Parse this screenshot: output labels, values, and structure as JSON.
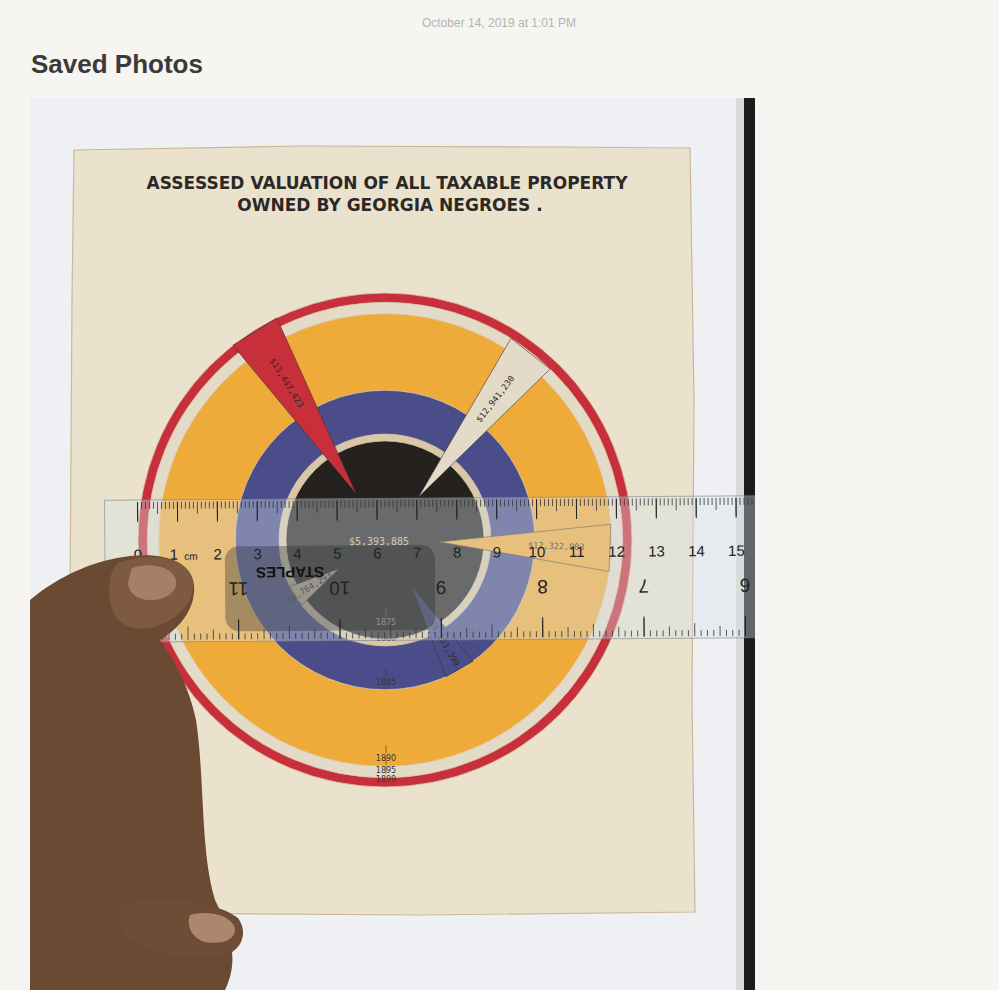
{
  "page": {
    "date": "October 14, 2019 at 1:01 PM",
    "heading": "Saved Photos"
  },
  "chart_data": {
    "type": "concentric",
    "title": "ASSESSED VALUATION OF ALL TAXABLE PROPERTY",
    "subtitle": "OWNED BY GEORGIA NEGROES .",
    "categories": [
      "1875",
      "1880",
      "1885",
      "1890",
      "1895",
      "1899"
    ],
    "values": [
      5393885,
      5764293,
      8153390,
      12322003,
      12941230,
      13447423
    ],
    "value_labels": [
      "$5,393,885",
      "$5,764,293",
      "$8,153,390",
      "$12,322,003",
      "$12,941,230",
      "$13,447,423"
    ],
    "colors": [
      "#25211f",
      "#d9c7a5",
      "#4b4d8a",
      "#efab3a",
      "#e4dac8",
      "#c7303b"
    ],
    "data_labels": true
  },
  "ruler": {
    "brand": "STAPLES",
    "unit": "cm",
    "cm_labels": [
      0,
      1,
      2,
      3,
      4,
      5,
      6,
      7,
      8,
      9,
      10,
      11,
      12,
      13,
      14,
      15
    ],
    "inch_labels": [
      6,
      7,
      8,
      9,
      10,
      11
    ]
  }
}
